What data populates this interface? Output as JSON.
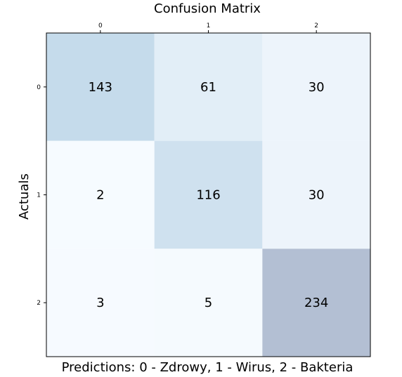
{
  "chart_data": {
    "type": "heatmap",
    "title": "Confusion Matrix",
    "xlabel": "Predictions: 0 - Zdrowy, 1 - Wirus, 2 - Bakteria",
    "ylabel": "Actuals",
    "x_ticks": [
      "0",
      "1",
      "2"
    ],
    "y_ticks": [
      "0",
      "1",
      "2"
    ],
    "x_tick_position": "top",
    "matrix": [
      [
        143,
        61,
        30
      ],
      [
        2,
        116,
        30
      ],
      [
        3,
        5,
        234
      ]
    ],
    "color_range": [
      0,
      234
    ],
    "colors": {
      "low": "#f7fbff",
      "high": "#b3bfd3",
      "mid": "#c6dcec"
    },
    "grid": false
  }
}
